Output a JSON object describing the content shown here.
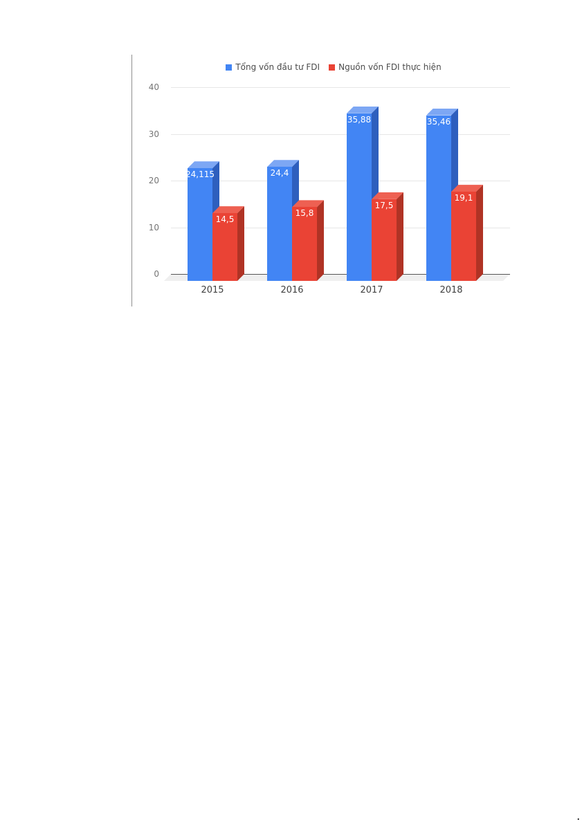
{
  "decor": {
    "corner_mark": "."
  },
  "chart_data": {
    "type": "bar",
    "subtype": "3d-column-grouped",
    "title": "",
    "categories": [
      "2015",
      "2016",
      "2017",
      "2018"
    ],
    "series": [
      {
        "name": "Tổng vốn đầu tư FDI",
        "values": [
          24.115,
          24.4,
          35.88,
          35.46
        ],
        "labels": [
          "24,115",
          "24,4",
          "35,88",
          "35,46"
        ],
        "color": "#4285f4",
        "color_top": "#7da7f4",
        "color_side": "#2e5fbe"
      },
      {
        "name": "Nguồn vốn FDI thực hiện",
        "values": [
          14.5,
          15.8,
          17.5,
          19.1
        ],
        "labels": [
          "14,5",
          "15,8",
          "17,5",
          "19,1"
        ],
        "color": "#ea4335",
        "color_top": "#ee6052",
        "color_side": "#b03325"
      }
    ],
    "xlabel": "",
    "ylabel": "",
    "ylim": [
      0,
      40
    ],
    "yticks": [
      0,
      10,
      20,
      30,
      40
    ],
    "grid": true,
    "legend_position": "top",
    "value_labels": "inside-top",
    "axis_colors": {
      "grid": "#e6e6e6",
      "zero_line": "#555555",
      "tick_text": "#757575",
      "category_text": "#404040"
    }
  }
}
